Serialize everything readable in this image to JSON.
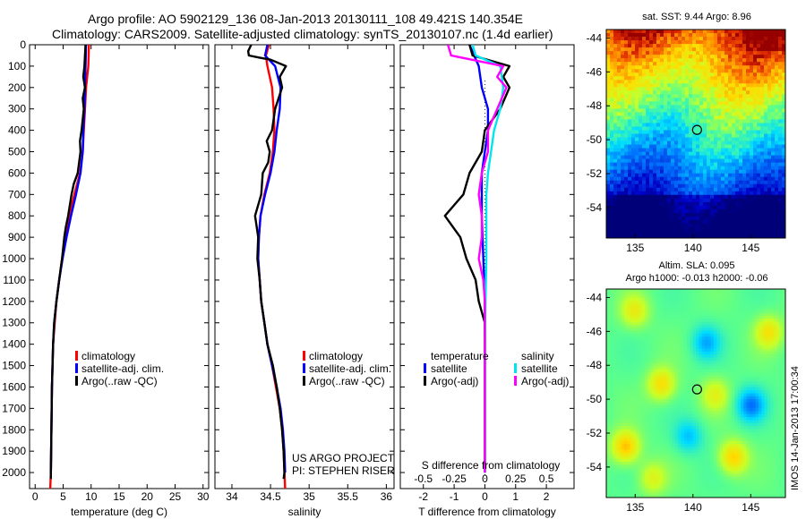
{
  "header": {
    "line1": "Argo profile: AO 5902129_136 08-Jan-2013 20130111_108 49.421S 140.354E",
    "line2": "Climatology: CARS2009. Satellite-adjusted climatology: synTS_20130107.nc (1.4d earlier)"
  },
  "credits": {
    "project": "US ARGO PROJECT",
    "pi": "PI: STEPHEN RISER",
    "stamp": "IMOS 14-Jan-2013 17:00:34"
  },
  "colors": {
    "climatology": "#ff0000",
    "satellite": "#0000ff",
    "argo": "#000000",
    "sal_satellite": "#00e5ee",
    "sal_argo": "#ff00ff"
  },
  "chart_data": [
    {
      "id": "temperature-profile",
      "type": "line",
      "xlabel": "temperature (deg C)",
      "ylabel": "",
      "xlim": [
        -1,
        31
      ],
      "ylim": [
        2075,
        0
      ],
      "xticks": [
        0,
        5,
        10,
        15,
        20,
        25,
        30
      ],
      "yticks": [
        0,
        100,
        200,
        300,
        400,
        500,
        600,
        700,
        800,
        900,
        1000,
        1100,
        1200,
        1300,
        1400,
        1500,
        1600,
        1700,
        1800,
        1900,
        2000
      ],
      "legend": [
        "climatology",
        "satellite-adj. clim.",
        "Argo(..raw -QC)"
      ],
      "series": [
        {
          "name": "climatology",
          "color": "#ff0000",
          "points": [
            [
              9.6,
              0
            ],
            [
              9.5,
              100
            ],
            [
              9.1,
              200
            ],
            [
              8.9,
              300
            ],
            [
              8.7,
              400
            ],
            [
              8.5,
              500
            ],
            [
              8.0,
              600
            ],
            [
              7.0,
              700
            ],
            [
              6.1,
              800
            ],
            [
              5.5,
              900
            ],
            [
              4.8,
              1000
            ],
            [
              4.3,
              1100
            ],
            [
              3.8,
              1200
            ],
            [
              3.5,
              1300
            ],
            [
              3.2,
              1400
            ],
            [
              3.0,
              1600
            ],
            [
              2.9,
              1800
            ],
            [
              2.8,
              2000
            ],
            [
              2.7,
              2075
            ]
          ]
        },
        {
          "name": "satellite-adj. clim.",
          "color": "#0000ff",
          "points": [
            [
              9.1,
              0
            ],
            [
              9.0,
              100
            ],
            [
              8.9,
              200
            ],
            [
              8.8,
              300
            ],
            [
              8.6,
              400
            ],
            [
              8.5,
              500
            ],
            [
              8.1,
              600
            ],
            [
              7.3,
              700
            ],
            [
              6.4,
              800
            ],
            [
              5.6,
              900
            ],
            [
              4.9,
              1000
            ],
            [
              4.3,
              1100
            ],
            [
              3.8,
              1200
            ],
            [
              3.4,
              1300
            ],
            [
              3.2,
              1400
            ],
            [
              3.0,
              1600
            ],
            [
              2.9,
              1800
            ],
            [
              2.8,
              2000
            ]
          ]
        },
        {
          "name": "Argo(..raw -QC)",
          "color": "#000000",
          "points": [
            [
              9.0,
              0
            ],
            [
              8.8,
              100
            ],
            [
              8.6,
              150
            ],
            [
              8.9,
              200
            ],
            [
              8.5,
              250
            ],
            [
              8.7,
              300
            ],
            [
              8.3,
              400
            ],
            [
              8.0,
              450
            ],
            [
              8.1,
              500
            ],
            [
              7.6,
              600
            ],
            [
              6.9,
              650
            ],
            [
              6.5,
              700
            ],
            [
              5.9,
              800
            ],
            [
              5.5,
              850
            ],
            [
              5.2,
              900
            ],
            [
              4.8,
              1000
            ],
            [
              4.3,
              1100
            ],
            [
              3.8,
              1200
            ],
            [
              3.4,
              1300
            ],
            [
              3.2,
              1400
            ],
            [
              3.0,
              1600
            ],
            [
              2.9,
              1800
            ],
            [
              2.8,
              2000
            ],
            [
              2.8,
              2030
            ]
          ]
        }
      ]
    },
    {
      "id": "salinity-profile",
      "type": "line",
      "xlabel": "salinity",
      "ylabel": "",
      "xlim": [
        33.78,
        36.1
      ],
      "ylim": [
        2075,
        0
      ],
      "xticks": [
        34,
        34.5,
        35,
        35.5,
        36
      ],
      "legend": [
        "climatology",
        "satellite-adj. clim.",
        "Argo(..raw -QC)"
      ],
      "series": [
        {
          "name": "climatology",
          "color": "#ff0000",
          "points": [
            [
              34.48,
              0
            ],
            [
              34.44,
              50
            ],
            [
              34.46,
              100
            ],
            [
              34.52,
              200
            ],
            [
              34.54,
              300
            ],
            [
              34.55,
              400
            ],
            [
              34.53,
              500
            ],
            [
              34.49,
              600
            ],
            [
              34.42,
              700
            ],
            [
              34.37,
              800
            ],
            [
              34.35,
              900
            ],
            [
              34.34,
              1000
            ],
            [
              34.36,
              1100
            ],
            [
              34.38,
              1200
            ],
            [
              34.42,
              1300
            ],
            [
              34.46,
              1400
            ],
            [
              34.52,
              1500
            ],
            [
              34.57,
              1600
            ],
            [
              34.62,
              1700
            ],
            [
              34.65,
              1800
            ],
            [
              34.67,
              1900
            ],
            [
              34.68,
              2000
            ],
            [
              34.69,
              2075
            ]
          ]
        },
        {
          "name": "satellite-adj. clim.",
          "color": "#0000ff",
          "points": [
            [
              34.46,
              0
            ],
            [
              34.43,
              50
            ],
            [
              34.56,
              100
            ],
            [
              34.63,
              200
            ],
            [
              34.62,
              300
            ],
            [
              34.58,
              400
            ],
            [
              34.55,
              500
            ],
            [
              34.5,
              600
            ],
            [
              34.43,
              700
            ],
            [
              34.37,
              800
            ],
            [
              34.35,
              900
            ],
            [
              34.34,
              1000
            ],
            [
              34.36,
              1100
            ],
            [
              34.38,
              1200
            ],
            [
              34.42,
              1300
            ],
            [
              34.46,
              1400
            ],
            [
              34.52,
              1500
            ],
            [
              34.58,
              1600
            ],
            [
              34.63,
              1700
            ],
            [
              34.66,
              1800
            ],
            [
              34.68,
              1900
            ],
            [
              34.69,
              2000
            ]
          ]
        },
        {
          "name": "Argo(..raw -QC)",
          "color": "#000000",
          "points": [
            [
              34.25,
              0
            ],
            [
              34.21,
              30
            ],
            [
              34.22,
              50
            ],
            [
              34.35,
              60
            ],
            [
              34.5,
              70
            ],
            [
              34.7,
              100
            ],
            [
              34.62,
              150
            ],
            [
              34.65,
              200
            ],
            [
              34.56,
              300
            ],
            [
              34.52,
              400
            ],
            [
              34.45,
              450
            ],
            [
              34.49,
              500
            ],
            [
              34.47,
              550
            ],
            [
              34.4,
              600
            ],
            [
              34.38,
              700
            ],
            [
              34.3,
              800
            ],
            [
              34.32,
              850
            ],
            [
              34.34,
              900
            ],
            [
              34.33,
              1000
            ],
            [
              34.36,
              1100
            ],
            [
              34.38,
              1200
            ],
            [
              34.42,
              1300
            ],
            [
              34.46,
              1400
            ],
            [
              34.53,
              1500
            ],
            [
              34.58,
              1600
            ],
            [
              34.62,
              1700
            ],
            [
              34.65,
              1800
            ],
            [
              34.67,
              1900
            ],
            [
              34.68,
              2000
            ],
            [
              34.67,
              2030
            ]
          ]
        }
      ]
    },
    {
      "id": "difference-profile",
      "type": "line",
      "xlabel": "T difference from climatology",
      "xlabel2": "S difference from climatology",
      "ylabel": "",
      "xlim": [
        -2.75,
        2.9
      ],
      "ylim": [
        2075,
        0
      ],
      "xticks": [
        -2,
        -1,
        0,
        1,
        2
      ],
      "xticks2_values": [
        -0.5,
        -0.25,
        0,
        0.25,
        0.5
      ],
      "xticks2_labels": [
        "-0.5",
        "-0.25",
        "0",
        "0.25",
        "0.5"
      ],
      "legend_temperature": [
        "temperature",
        "satellite",
        "Argo(-adj)"
      ],
      "legend_salinity": [
        "salinity",
        "satellite",
        "Argo(-adj)"
      ],
      "series": [
        {
          "name": "satellite",
          "color": "#0000ff",
          "points": [
            [
              -0.5,
              0
            ],
            [
              -0.35,
              50
            ],
            [
              -0.2,
              100
            ],
            [
              -0.1,
              200
            ],
            [
              0.1,
              300
            ],
            [
              0.1,
              400
            ],
            [
              0.0,
              500
            ],
            [
              -0.1,
              600
            ],
            [
              -0.1,
              700
            ],
            [
              -0.1,
              800
            ],
            [
              -0.05,
              1000
            ],
            [
              0.0,
              1200
            ],
            [
              0.0,
              1400
            ],
            [
              0.0,
              1600
            ],
            [
              0.0,
              1800
            ],
            [
              0.0,
              2000
            ]
          ]
        },
        {
          "name": "Argo(-adj)",
          "color": "#000000",
          "points": [
            [
              -0.5,
              0
            ],
            [
              -0.4,
              50
            ],
            [
              0.8,
              100
            ],
            [
              0.6,
              150
            ],
            [
              0.8,
              200
            ],
            [
              0.5,
              300
            ],
            [
              0.0,
              400
            ],
            [
              -0.1,
              500
            ],
            [
              -0.5,
              600
            ],
            [
              -0.7,
              700
            ],
            [
              -1.3,
              800
            ],
            [
              -0.8,
              900
            ],
            [
              -0.6,
              1000
            ],
            [
              -0.3,
              1100
            ],
            [
              -0.2,
              1200
            ],
            [
              0.0,
              1300
            ],
            [
              0.0,
              1400
            ],
            [
              0.0,
              1600
            ],
            [
              0.0,
              1800
            ],
            [
              0.0,
              2000
            ]
          ]
        },
        {
          "name": "satellite",
          "color": "#00e5ee",
          "points": [
            [
              -0.4,
              0
            ],
            [
              -0.3,
              50
            ],
            [
              0.5,
              100
            ],
            [
              0.6,
              200
            ],
            [
              0.5,
              300
            ],
            [
              0.3,
              400
            ],
            [
              0.2,
              500
            ],
            [
              0.1,
              600
            ],
            [
              0.05,
              700
            ],
            [
              0.05,
              800
            ],
            [
              0.05,
              1000
            ],
            [
              0.02,
              1200
            ],
            [
              0.0,
              1400
            ],
            [
              0.0,
              1600
            ],
            [
              0.0,
              1800
            ],
            [
              0.0,
              2000
            ]
          ]
        },
        {
          "name": "Argo(-adj)",
          "color": "#ff00ff",
          "points": [
            [
              -1.2,
              0
            ],
            [
              -1.1,
              50
            ],
            [
              0.6,
              100
            ],
            [
              0.4,
              150
            ],
            [
              0.7,
              200
            ],
            [
              0.4,
              300
            ],
            [
              0.1,
              400
            ],
            [
              0.1,
              500
            ],
            [
              -0.1,
              600
            ],
            [
              -0.2,
              700
            ],
            [
              -0.1,
              800
            ],
            [
              -0.1,
              900
            ],
            [
              -0.2,
              1000
            ],
            [
              -0.05,
              1100
            ],
            [
              0.0,
              1200
            ],
            [
              0.0,
              1400
            ],
            [
              0.0,
              1600
            ],
            [
              0.0,
              1800
            ],
            [
              0.0,
              2000
            ]
          ]
        }
      ]
    },
    {
      "id": "sst-map",
      "type": "heatmap",
      "title": "sat. SST: 9.44  Argo: 8.96",
      "xlim": [
        132.5,
        148
      ],
      "ylim": [
        -55.8,
        -43.5
      ],
      "xticks": [
        135,
        140,
        145
      ],
      "yticks": [
        -44,
        -46,
        -48,
        -50,
        -52,
        -54
      ],
      "marker": [
        140.354,
        -49.421
      ]
    },
    {
      "id": "sla-map",
      "type": "heatmap",
      "title_line1": "Altim. SLA: 0.095",
      "title_line2": "Argo h1000: -0.013 h2000: -0.06",
      "xlim": [
        132.5,
        148
      ],
      "ylim": [
        -55.8,
        -43.5
      ],
      "xticks": [
        135,
        140,
        145
      ],
      "yticks": [
        -44,
        -46,
        -48,
        -50,
        -52,
        -54
      ],
      "marker": [
        140.354,
        -49.421
      ]
    }
  ]
}
